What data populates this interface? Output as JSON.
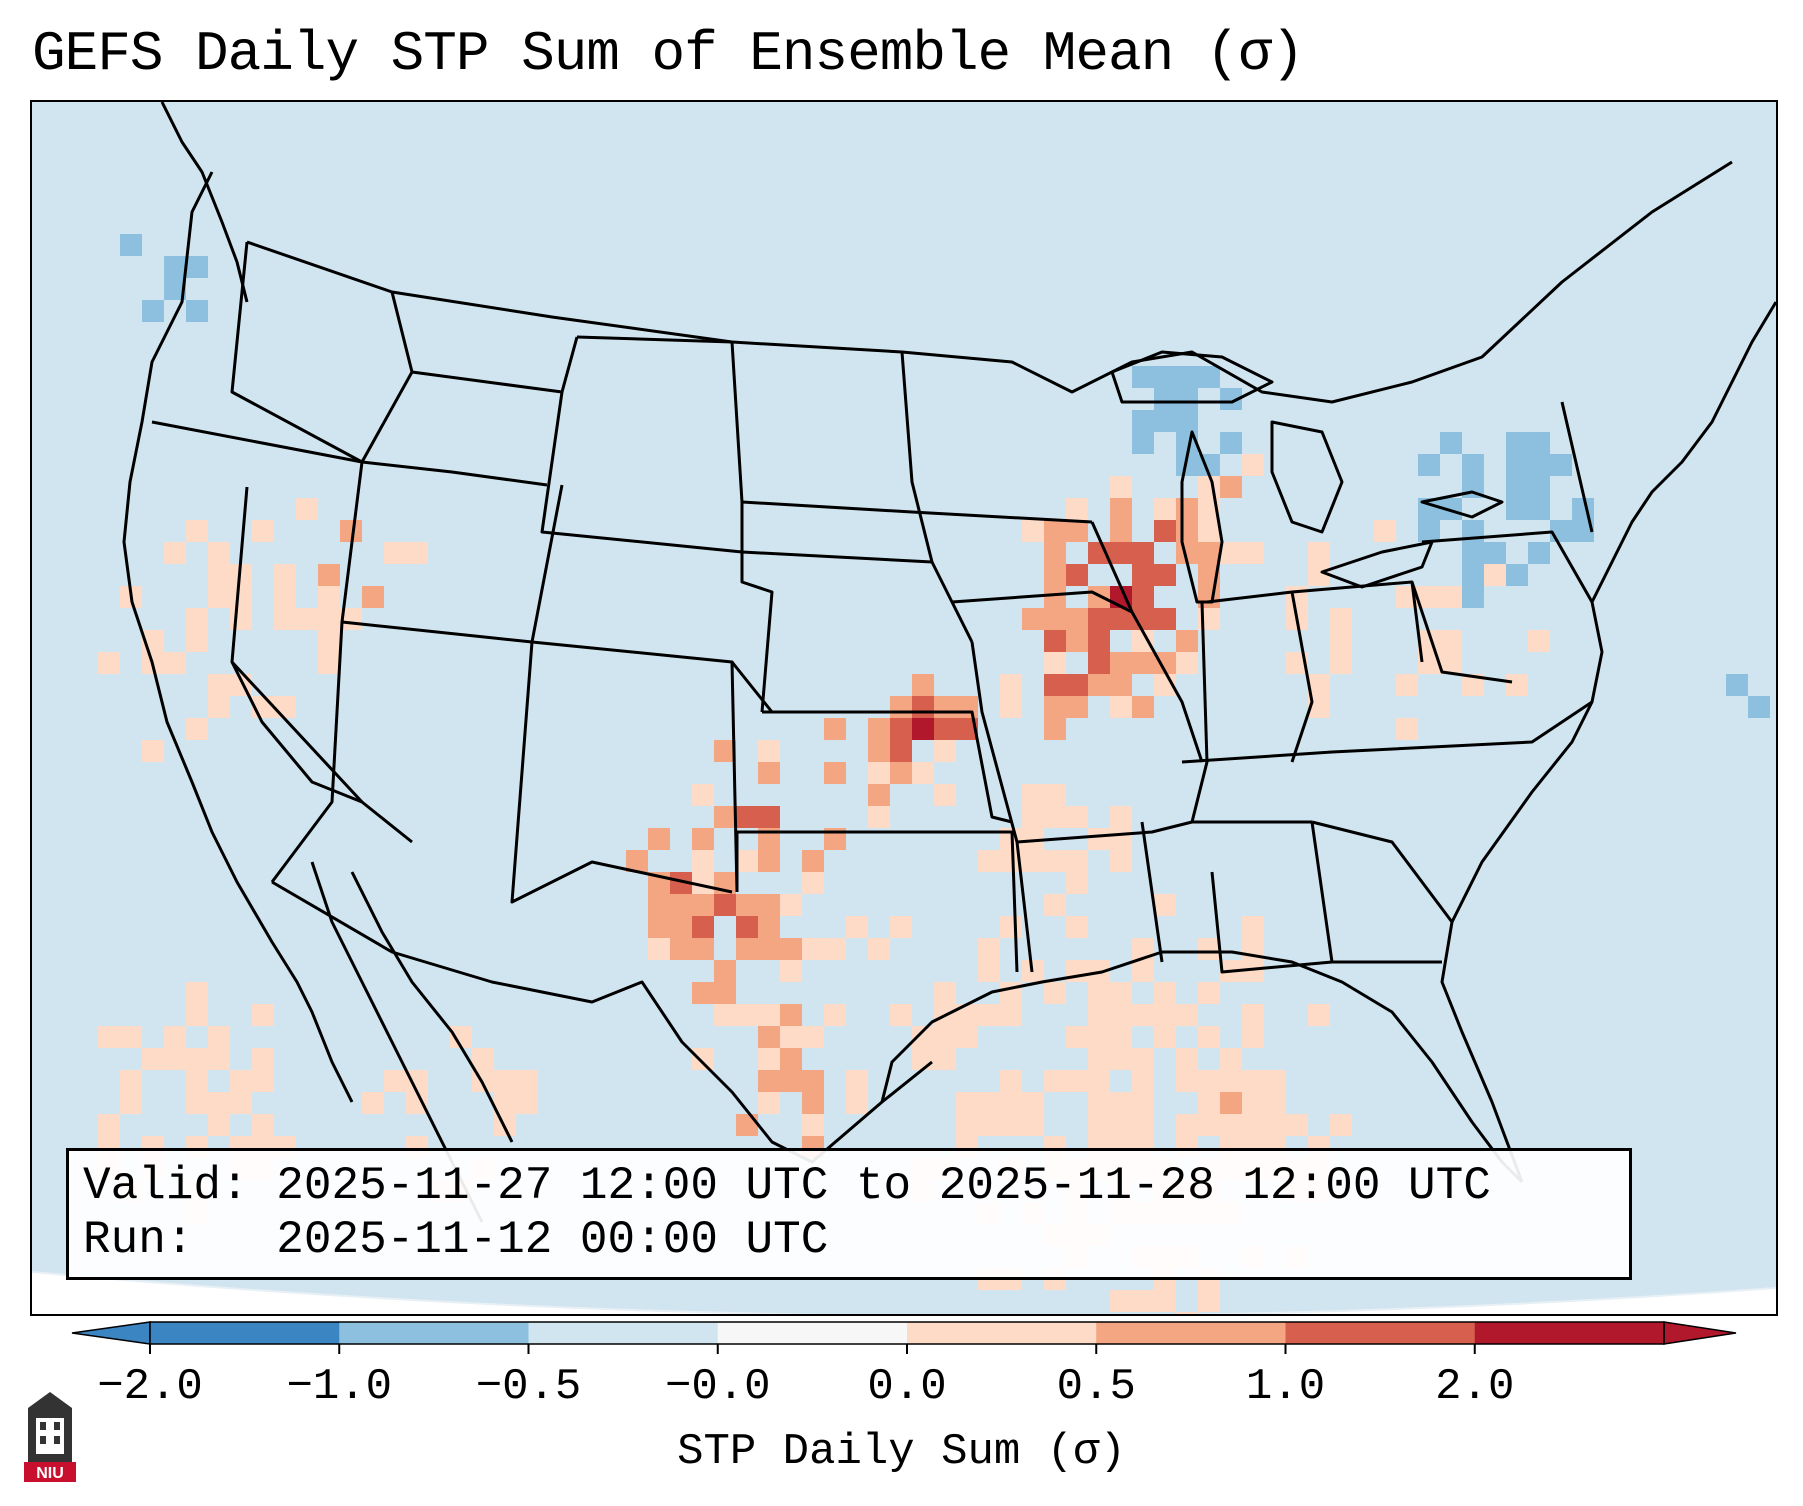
{
  "title": "GEFS Daily STP Sum of Ensemble Mean (σ)",
  "info": {
    "valid_label": "Valid:",
    "valid_value": "2025-11-27 12:00 UTC to 2025-11-28 12:00 UTC",
    "run_label": "Run:",
    "run_value": "2025-11-12 00:00 UTC"
  },
  "colorbar": {
    "label": "STP Daily Sum (σ)",
    "ticks": [
      "−2.0",
      "−1.0",
      "−0.5",
      "−0.0",
      "0.0",
      "0.5",
      "1.0",
      "2.0"
    ],
    "colors": [
      "#3b85c3",
      "#8cc0de",
      "#d1e5f0",
      "#f7f7f7",
      "#fddbc7",
      "#f4a582",
      "#d6604d",
      "#b2182b"
    ]
  },
  "logo": {
    "text": "NIU",
    "icon": "university-tower-icon"
  },
  "map": {
    "background_color": "#d1e5f0",
    "states_drawn": true
  }
}
